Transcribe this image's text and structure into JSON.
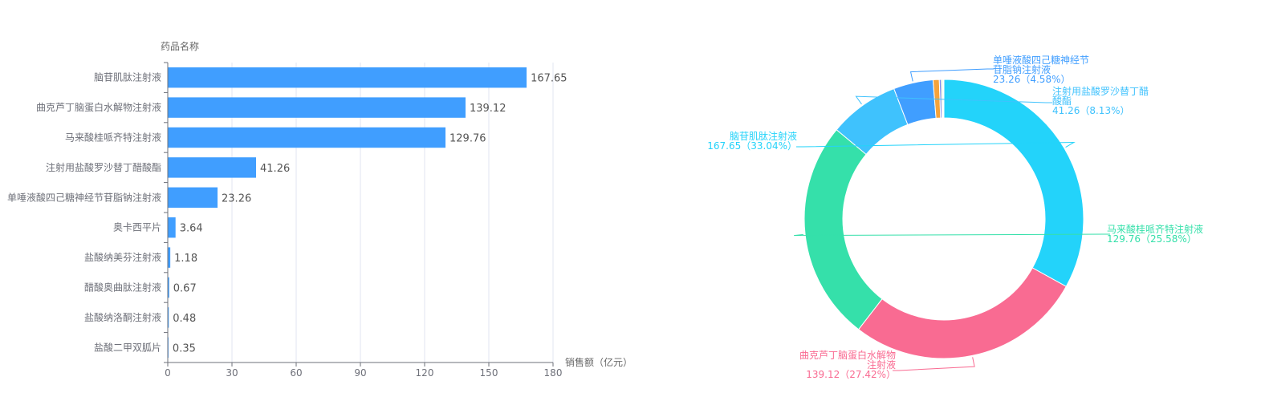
{
  "chart_data": [
    {
      "type": "bar",
      "orientation": "horizontal",
      "ylabel": "药品名称",
      "xlabel": "销售额（亿元）",
      "xlim": [
        0,
        180
      ],
      "xticks": [
        0,
        30,
        60,
        90,
        120,
        150,
        180
      ],
      "grid": true,
      "bar_color": "#409EFF",
      "categories": [
        "脑苷肌肽注射液",
        "曲克芦丁脑蛋白水解物注射液",
        "马来酸桂哌齐特注射液",
        "注射用盐酸罗沙替丁醋酸酯",
        "单唾液酸四己糖神经节苷脂钠注射液",
        "奥卡西平片",
        "盐酸纳美芬注射液",
        "醋酸奥曲肽注射液",
        "盐酸纳洛酮注射液",
        "盐酸二甲双胍片"
      ],
      "values": [
        167.65,
        139.12,
        129.76,
        41.26,
        23.26,
        3.64,
        1.18,
        0.67,
        0.48,
        0.35
      ],
      "value_labels": [
        "167.65",
        "139.12",
        "129.76",
        "41.26",
        "23.26",
        "3.64",
        "1.18",
        "0.67",
        "0.48",
        "0.35"
      ]
    },
    {
      "type": "pie",
      "style": "donut",
      "slices": [
        {
          "name": "脑苷肌肽注射液",
          "value": 167.65,
          "color": "#23D3FA",
          "label": [
            "脑苷肌肽注射液",
            "167.65（33.04%）"
          ],
          "side": "left"
        },
        {
          "name": "曲克芦丁脑蛋白水解物注射液",
          "value": 139.12,
          "color": "#F96B92",
          "label": [
            "曲克芦丁脑蛋白水解物",
            "注射液",
            "139.12（27.42%）"
          ],
          "side": "left"
        },
        {
          "name": "马来酸桂哌齐特注射液",
          "value": 129.76,
          "color": "#35E0AA",
          "label": [
            "马来酸桂哌齐特注射液",
            "129.76（25.58%）"
          ],
          "side": "right"
        },
        {
          "name": "注射用盐酸罗沙替丁醋酸酯",
          "value": 41.26,
          "color": "#3FC2FD",
          "label": [
            "注射用盐酸罗沙替丁醋",
            "酸酯",
            "41.26（8.13%）"
          ],
          "side": "right"
        },
        {
          "name": "单唾液酸四己糖神经节苷脂钠注射液",
          "value": 23.26,
          "color": "#409EFF",
          "label": [
            "单唾液酸四己糖神经节",
            "苷脂钠注射液",
            "23.26（4.58%）"
          ],
          "side": "right"
        },
        {
          "name": "奥卡西平片",
          "value": 3.64,
          "color": "#F5A33B"
        },
        {
          "name": "盐酸纳美芬注射液",
          "value": 1.18,
          "color": "#7E8CEB"
        },
        {
          "name": "醋酸奥曲肽注射液",
          "value": 0.67,
          "color": "#B2D85E"
        },
        {
          "name": "盐酸纳洛酮注射液",
          "value": 0.48,
          "color": "#F76D6D"
        },
        {
          "name": "盐酸二甲双胍片",
          "value": 0.35,
          "color": "#9A7FE0"
        }
      ]
    }
  ]
}
